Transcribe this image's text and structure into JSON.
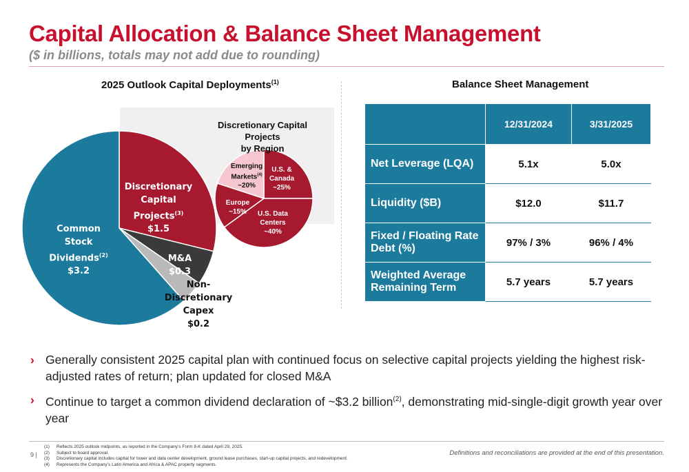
{
  "header": {
    "title": "Capital Allocation & Balance Sheet Management",
    "subtitle": "($ in billions, totals may not add due to rounding)"
  },
  "left_section": {
    "heading": "2025 Outlook Capital Deployments",
    "heading_sup": "(1)"
  },
  "right_section": {
    "heading": "Balance Sheet Management"
  },
  "colors": {
    "accent_red": "#c8102e",
    "teal": "#1c7a9c",
    "dark_red": "#a6192e",
    "dark_gray": "#3a3a3a",
    "light_gray": "#b9b9b9",
    "pink": "#f6c6d1"
  },
  "chart_data": [
    {
      "type": "pie",
      "title": "2025 Outlook Capital Deployments",
      "slices": [
        {
          "label": "Discretionary Capital Projects",
          "sup": "(3)",
          "value": 1.5,
          "display": "$1.5",
          "color": "#a6192e"
        },
        {
          "label": "M&A",
          "value": 0.3,
          "display": "$0.3",
          "color": "#3a3a3a"
        },
        {
          "label": "Non-Discretionary Capex",
          "value": 0.2,
          "display": "$0.2",
          "color": "#b9b9b9"
        },
        {
          "label": "Common Stock Dividends",
          "sup": "(2)",
          "value": 3.2,
          "display": "$3.2",
          "color": "#1c7a9c"
        }
      ]
    },
    {
      "type": "pie",
      "title": "Discretionary Capital Projects by Region",
      "slices": [
        {
          "label": "U.S. & Canada",
          "value": 25,
          "display": "~25%",
          "color": "#a6192e"
        },
        {
          "label": "U.S. Data Centers",
          "value": 40,
          "display": "~40%",
          "color": "#a6192e"
        },
        {
          "label": "Europe",
          "value": 15,
          "display": "~15%",
          "color": "#a6192e"
        },
        {
          "label": "Emerging Markets",
          "sup": "(4)",
          "value": 20,
          "display": "~20%",
          "color": "#f6c6d1"
        }
      ]
    }
  ],
  "big_pie_labels": {
    "disc_line1": "Discretionary",
    "disc_line2": "Capital Projects",
    "disc_sup": "(3)",
    "disc_val": "$1.5",
    "ma_line1": "M&A",
    "ma_val": "$0.3",
    "nd_line1": "Non-",
    "nd_line2": "Discretionary",
    "nd_line3": "Capex",
    "nd_val": "$0.2",
    "div_line1": "Common Stock",
    "div_line2": "Dividends",
    "div_sup": "(2)",
    "div_val": "$3.2"
  },
  "small_pie_labels": {
    "title_line1": "Discretionary Capital Projects",
    "title_line2": "by Region",
    "usc_line1": "U.S. &",
    "usc_line2": "Canada",
    "usc_val": "~25%",
    "usdc_line1": "U.S. Data",
    "usdc_line2": "Centers",
    "usdc_val": "~40%",
    "eu_line1": "Europe",
    "eu_val": "~15%",
    "em_line1": "Emerging",
    "em_line2": "Markets",
    "em_sup": "(4)",
    "em_val": "~20%"
  },
  "table": {
    "columns": [
      "12/31/2024",
      "3/31/2025"
    ],
    "rows": [
      {
        "label": "Net Leverage (LQA)",
        "v1": "5.1x",
        "v2": "5.0x"
      },
      {
        "label": "Liquidity ($B)",
        "v1": "$12.0",
        "v2": "$11.7"
      },
      {
        "label": "Fixed / Floating Rate Debt (%)",
        "v1": "97% / 3%",
        "v2": "96% / 4%"
      },
      {
        "label": "Weighted Average Remaining Term",
        "v1": "5.7 years",
        "v2": "5.7 years"
      }
    ]
  },
  "bullets": {
    "chevron": "›",
    "b1": "Generally consistent 2025 capital plan with continued focus on selective capital projects yielding the highest risk-adjusted rates of return; plan updated for closed M&A",
    "b2_pre": "Continue to target a common dividend declaration of ~$3.2 billion",
    "b2_sup": "(2)",
    "b2_post": ", demonstrating mid-single-digit growth year over year"
  },
  "footer": {
    "page": "9",
    "sep": "|",
    "notes": [
      {
        "num": "(1)",
        "text": "Reflects 2025 outlook midpoints, as reported in the Company’s Form 8-K dated April 29, 2025."
      },
      {
        "num": "(2)",
        "text": "Subject to board approval."
      },
      {
        "num": "(3)",
        "text": "Discretionary capital includes capital for tower and data center development, ground lease purchases, start-up capital projects, and redevelopment."
      },
      {
        "num": "(4)",
        "text": "Represents the Company’s Latin America and Africa & APAC property segments."
      }
    ],
    "definitions": "Definitions and reconciliations are provided at the end of this presentation."
  }
}
